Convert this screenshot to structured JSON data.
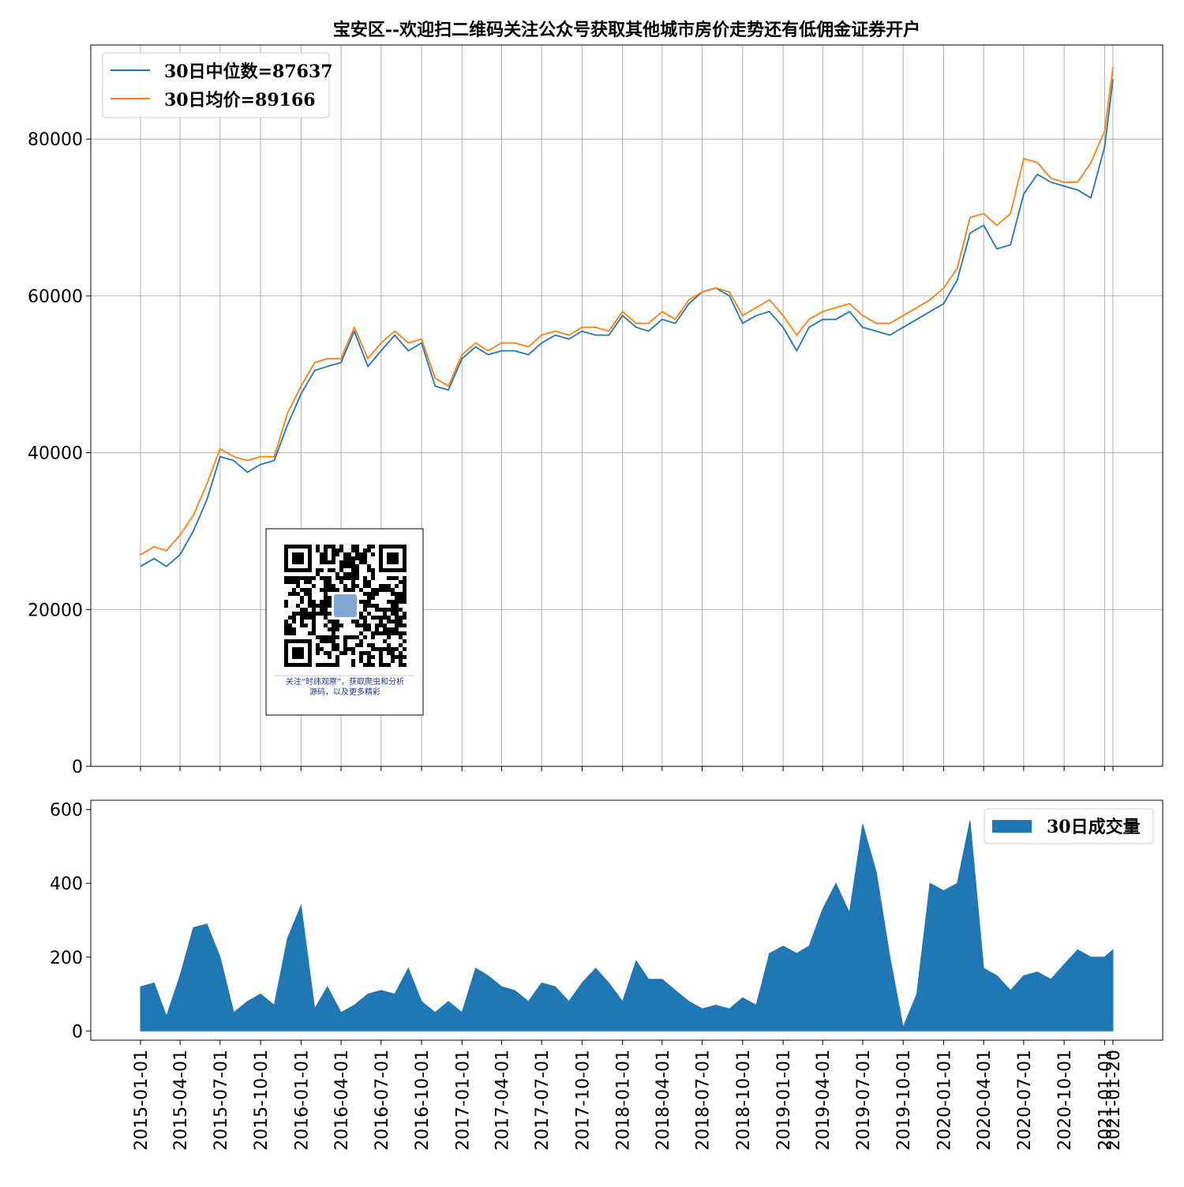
{
  "chart_data": [
    {
      "type": "line",
      "title": "宝安区--欢迎扫二维码关注公众号获取其他城市房价走势还有低佣金证券开户",
      "xlabel": "",
      "ylabel": "",
      "ylim": [
        0,
        92000
      ],
      "yticks": [
        0,
        20000,
        40000,
        60000,
        80000
      ],
      "grid": true,
      "legend_position": "top-left",
      "x_tick_labels": [
        "2015-01-01",
        "2015-04-01",
        "2015-07-01",
        "2015-10-01",
        "2016-01-01",
        "2016-04-01",
        "2016-07-01",
        "2016-10-01",
        "2017-01-01",
        "2017-04-01",
        "2017-07-01",
        "2017-10-01",
        "2018-01-01",
        "2018-04-01",
        "2018-07-01",
        "2018-10-01",
        "2019-01-01",
        "2019-04-01",
        "2019-07-01",
        "2019-10-01",
        "2020-01-01",
        "2020-04-01",
        "2020-07-01",
        "2020-10-01",
        "2021-01-01",
        "2021-01-20"
      ],
      "x": [
        "2015-01-01",
        "2015-02-01",
        "2015-03-01",
        "2015-04-01",
        "2015-05-01",
        "2015-06-01",
        "2015-07-01",
        "2015-08-01",
        "2015-09-01",
        "2015-10-01",
        "2015-11-01",
        "2015-12-01",
        "2016-01-01",
        "2016-02-01",
        "2016-03-01",
        "2016-04-01",
        "2016-05-01",
        "2016-06-01",
        "2016-07-01",
        "2016-08-01",
        "2016-09-01",
        "2016-10-01",
        "2016-11-01",
        "2016-12-01",
        "2017-01-01",
        "2017-02-01",
        "2017-03-01",
        "2017-04-01",
        "2017-05-01",
        "2017-06-01",
        "2017-07-01",
        "2017-08-01",
        "2017-09-01",
        "2017-10-01",
        "2017-11-01",
        "2017-12-01",
        "2018-01-01",
        "2018-02-01",
        "2018-03-01",
        "2018-04-01",
        "2018-05-01",
        "2018-06-01",
        "2018-07-01",
        "2018-08-01",
        "2018-09-01",
        "2018-10-01",
        "2018-11-01",
        "2018-12-01",
        "2019-01-01",
        "2019-02-01",
        "2019-03-01",
        "2019-04-01",
        "2019-05-01",
        "2019-06-01",
        "2019-07-01",
        "2019-08-01",
        "2019-09-01",
        "2019-10-01",
        "2019-11-01",
        "2019-12-01",
        "2020-01-01",
        "2020-02-01",
        "2020-03-01",
        "2020-04-01",
        "2020-05-01",
        "2020-06-01",
        "2020-07-01",
        "2020-08-01",
        "2020-09-01",
        "2020-10-01",
        "2020-11-01",
        "2020-12-01",
        "2021-01-01",
        "2021-01-20"
      ],
      "series": [
        {
          "name": "30日中位数=87637",
          "color": "#1f77b4",
          "values": [
            25500,
            26500,
            25500,
            27000,
            30000,
            34000,
            39500,
            39000,
            37500,
            38500,
            39000,
            43500,
            47500,
            50500,
            51000,
            51500,
            55500,
            51000,
            53000,
            55000,
            53000,
            54000,
            48500,
            48000,
            52000,
            53500,
            52500,
            53000,
            53000,
            52500,
            54000,
            55000,
            54500,
            55500,
            55000,
            55000,
            57500,
            56000,
            55500,
            57000,
            56500,
            59000,
            60500,
            61000,
            60000,
            56500,
            57500,
            58000,
            56000,
            53000,
            56000,
            57000,
            57000,
            58000,
            56000,
            55500,
            55000,
            56000,
            57000,
            58000,
            59000,
            62000,
            68000,
            69000,
            66000,
            66500,
            73000,
            75500,
            74500,
            74000,
            73500,
            72500,
            79000,
            87637
          ]
        },
        {
          "name": "30日均价=89166",
          "color": "#ff7f0e",
          "values": [
            27000,
            28000,
            27500,
            29500,
            32000,
            36000,
            40500,
            39500,
            39000,
            39500,
            39500,
            45000,
            48500,
            51500,
            52000,
            52000,
            56000,
            52000,
            54000,
            55500,
            54000,
            54500,
            49500,
            48500,
            52500,
            54000,
            53000,
            54000,
            54000,
            53500,
            55000,
            55500,
            55000,
            56000,
            56000,
            55500,
            58000,
            56500,
            56500,
            58000,
            57000,
            59500,
            60500,
            61000,
            60500,
            57500,
            58500,
            59500,
            57500,
            55000,
            57000,
            58000,
            58500,
            59000,
            57500,
            56500,
            56500,
            57500,
            58500,
            59500,
            61000,
            63500,
            70000,
            70500,
            69000,
            70500,
            77500,
            77000,
            75000,
            74500,
            74500,
            77000,
            81000,
            89166
          ]
        }
      ],
      "legend": [
        "30日中位数=87637",
        "30日均价=89166"
      ]
    },
    {
      "type": "area",
      "title": "",
      "xlabel": "",
      "ylabel": "",
      "ylim": [
        -25,
        625
      ],
      "yticks": [
        0,
        200,
        400,
        600
      ],
      "grid": false,
      "legend_position": "top-right",
      "x": [
        "2015-01-01",
        "2015-02-01",
        "2015-03-01",
        "2015-04-01",
        "2015-05-01",
        "2015-06-01",
        "2015-07-01",
        "2015-08-01",
        "2015-09-01",
        "2015-10-01",
        "2015-11-01",
        "2015-12-01",
        "2016-01-01",
        "2016-02-01",
        "2016-03-01",
        "2016-04-01",
        "2016-05-01",
        "2016-06-01",
        "2016-07-01",
        "2016-08-01",
        "2016-09-01",
        "2016-10-01",
        "2016-11-01",
        "2016-12-01",
        "2017-01-01",
        "2017-02-01",
        "2017-03-01",
        "2017-04-01",
        "2017-05-01",
        "2017-06-01",
        "2017-07-01",
        "2017-08-01",
        "2017-09-01",
        "2017-10-01",
        "2017-11-01",
        "2017-12-01",
        "2018-01-01",
        "2018-02-01",
        "2018-03-01",
        "2018-04-01",
        "2018-05-01",
        "2018-06-01",
        "2018-07-01",
        "2018-08-01",
        "2018-09-01",
        "2018-10-01",
        "2018-11-01",
        "2018-12-01",
        "2019-01-01",
        "2019-02-01",
        "2019-03-01",
        "2019-04-01",
        "2019-05-01",
        "2019-06-01",
        "2019-07-01",
        "2019-08-01",
        "2019-09-01",
        "2019-10-01",
        "2019-11-01",
        "2019-12-01",
        "2020-01-01",
        "2020-02-01",
        "2020-03-01",
        "2020-04-01",
        "2020-05-01",
        "2020-06-01",
        "2020-07-01",
        "2020-08-01",
        "2020-09-01",
        "2020-10-01",
        "2020-11-01",
        "2020-12-01",
        "2021-01-01",
        "2021-01-20"
      ],
      "series": [
        {
          "name": "30日成交量",
          "color": "#1f77b4",
          "values": [
            120,
            130,
            40,
            150,
            280,
            290,
            200,
            50,
            80,
            100,
            70,
            250,
            340,
            60,
            120,
            50,
            70,
            100,
            110,
            100,
            170,
            80,
            50,
            80,
            50,
            170,
            150,
            120,
            110,
            80,
            130,
            120,
            80,
            130,
            170,
            130,
            80,
            190,
            140,
            140,
            110,
            80,
            60,
            70,
            60,
            90,
            70,
            210,
            230,
            210,
            230,
            330,
            400,
            320,
            560,
            430,
            200,
            10,
            100,
            400,
            380,
            400,
            570,
            170,
            150,
            110,
            150,
            160,
            140,
            180,
            220,
            200,
            200,
            220
          ]
        }
      ],
      "legend": [
        "30日成交量"
      ]
    }
  ],
  "qr_box": {
    "caption_line1": "关注“时纬观察”，获取爬虫和分析",
    "caption_line2": "源码，以及更多精彩"
  }
}
